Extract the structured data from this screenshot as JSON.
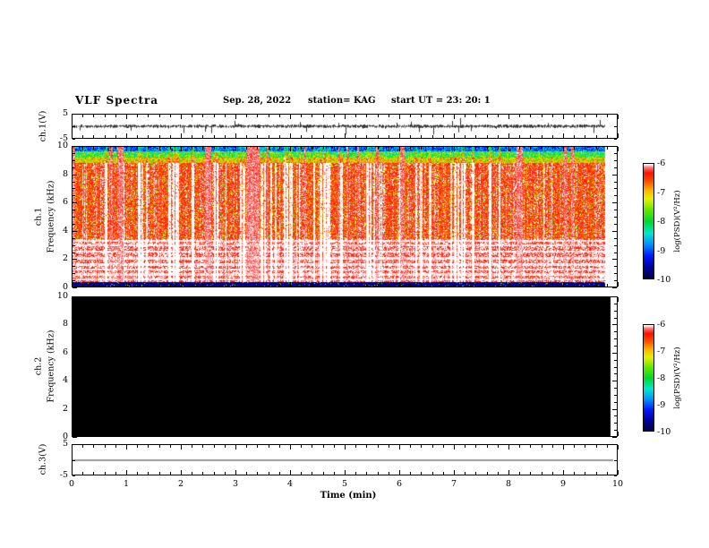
{
  "header": {
    "title": "VLF Spectra",
    "date": "Sep. 28, 2022",
    "station": "station= KAG",
    "start_ut": "start UT =  23: 20: 1"
  },
  "axes": {
    "time": {
      "label": "Time  (min)",
      "min": 0,
      "max": 10,
      "major_ticks": [
        0,
        1,
        2,
        3,
        4,
        5,
        6,
        7,
        8,
        9,
        10
      ],
      "tick_labels": [
        "0",
        "1",
        "2",
        "3",
        "4",
        "5",
        "6",
        "7",
        "8",
        "9",
        "10"
      ],
      "minor_step": 0.2
    },
    "ch1_wave": {
      "label": "ch.1(V)",
      "min": -5,
      "max": 5,
      "ticks": [
        5,
        -5
      ],
      "tick_labels": [
        "5",
        "-5"
      ]
    },
    "ch1_spec": {
      "channel": "ch.1",
      "label": "Frequency (kHz)",
      "min": 0,
      "max": 10,
      "ticks": [
        0,
        2,
        4,
        6,
        8,
        10
      ],
      "tick_labels": [
        "0",
        "2",
        "4",
        "6",
        "8",
        "10"
      ],
      "minor_step": 0.5
    },
    "ch2_spec": {
      "channel": "ch.2",
      "label": "Frequency (kHz)",
      "min": 0,
      "max": 10,
      "ticks": [
        0,
        2,
        4,
        6,
        8,
        10
      ],
      "tick_labels": [
        "0",
        "2",
        "4",
        "6",
        "8",
        "10"
      ],
      "minor_step": 0.5
    },
    "ch3_wave": {
      "label": "ch.3(V)",
      "min": -5,
      "max": 5,
      "ticks": [
        5,
        -5
      ],
      "tick_labels": [
        "5",
        "-5"
      ]
    },
    "colorbar": {
      "label": "log(PSD)(V²/Hz)",
      "ticks": [
        -6,
        -7,
        -8,
        -9,
        -10
      ],
      "tick_labels": [
        "-6",
        "-7",
        "-8",
        "-9",
        "-10"
      ]
    }
  },
  "chart_data": [
    {
      "type": "line",
      "name": "ch1_voltage_waveform",
      "ylabel": "ch.1(V)",
      "xlim": [
        0,
        10
      ],
      "ylim": [
        -5,
        5
      ],
      "x_end": 9.8,
      "baseline_v": 0,
      "typical_amplitude_v": 0.8,
      "spike_amplitude_v": 3,
      "description": "dense broadband noise trace centered on 0 V with frequent impulsive spikes to about ±3 V"
    },
    {
      "type": "heatmap",
      "name": "ch1_spectrogram",
      "ylabel": "Frequency (kHz)",
      "xlim": [
        0,
        10
      ],
      "ylim": [
        0,
        10
      ],
      "x_end": 9.8,
      "value_label": "log(PSD)(V²/Hz)",
      "value_range": [
        -10,
        -6
      ],
      "dominant_value": -6.5,
      "features": [
        "broadband intense red/orange field (PSD ≈ -6.2 to -6.8) from ~0.4 to ~9 kHz",
        "many narrow white saturated vertical streaks (PSD ≥ -6) throughout the record",
        "wide white saturation event near t ≈ 3.4 min spanning nearly all frequencies",
        "thin blue/cyan band (PSD ≈ -9 to -8.5) at the top edge near 9.7-10 kHz",
        "green/yellow transition band (PSD ≈ -7.5) around 9-9.7 kHz",
        "bright near-white horizontal banding between ~0.5 and 3.3 kHz",
        "dark navy/black band (PSD ≤ -9.5) below ~0.35 kHz"
      ]
    },
    {
      "type": "heatmap",
      "name": "ch2_spectrogram",
      "ylabel": "Frequency (kHz)",
      "xlim": [
        0,
        10
      ],
      "ylim": [
        0,
        10
      ],
      "x_end": 9.9,
      "value_label": "log(PSD)(V²/Hz)",
      "value_range": [
        -10,
        -6
      ],
      "features": [
        "entire panel uniformly black: no signal recorded on ch.2 (PSD at or below scale minimum)"
      ]
    },
    {
      "type": "line",
      "name": "ch3_voltage_waveform",
      "ylabel": "ch.3(V)",
      "xlim": [
        0,
        10
      ],
      "ylim": [
        -5,
        5
      ],
      "x_end": 9.95,
      "baseline_v": 0,
      "description": "perfectly flat trace at 0 V"
    }
  ],
  "color_scale": {
    "range": [
      -10,
      -6
    ],
    "stops": [
      {
        "v": -10.0,
        "color": "#000040"
      },
      {
        "v": -9.6,
        "color": "#0000a0"
      },
      {
        "v": -9.2,
        "color": "#0018ff"
      },
      {
        "v": -8.8,
        "color": "#0090ff"
      },
      {
        "v": -8.4,
        "color": "#00e8d0"
      },
      {
        "v": -8.0,
        "color": "#00d830"
      },
      {
        "v": -7.6,
        "color": "#60e800"
      },
      {
        "v": -7.2,
        "color": "#e8f000"
      },
      {
        "v": -6.9,
        "color": "#ffb000"
      },
      {
        "v": -6.6,
        "color": "#ff5000"
      },
      {
        "v": -6.3,
        "color": "#ff1000"
      },
      {
        "v": -6.1,
        "color": "#ff8080"
      },
      {
        "v": -6.0,
        "color": "#ffffff"
      }
    ]
  }
}
